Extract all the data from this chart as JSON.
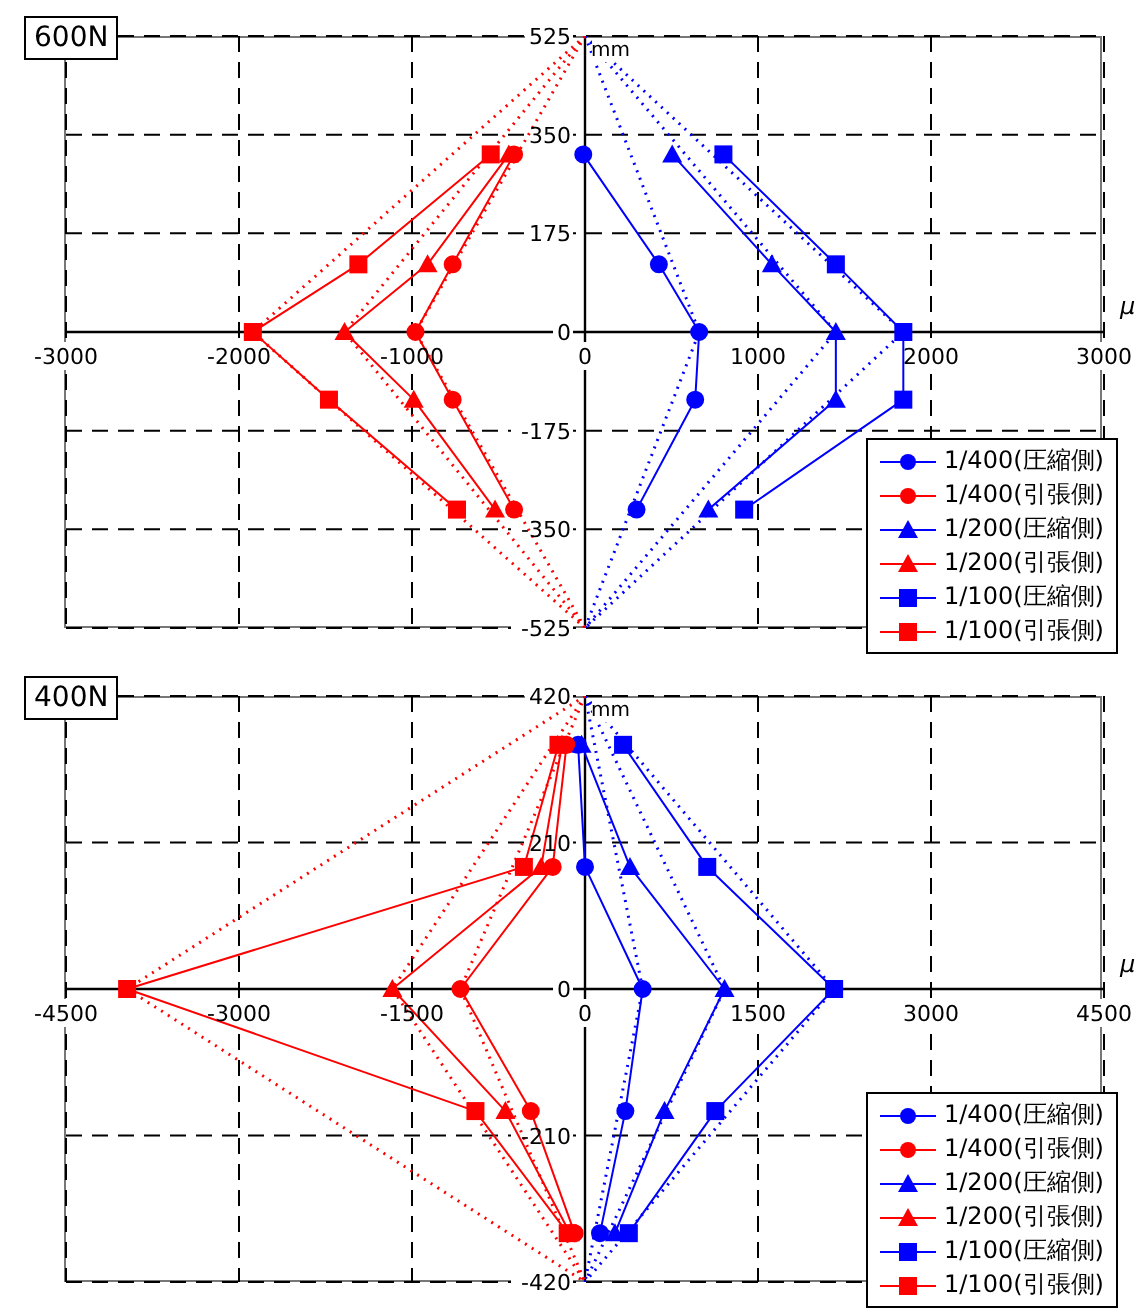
{
  "chart_data": [
    {
      "type": "line",
      "title": "600N",
      "xlabel": "μ",
      "ylabel": "mm",
      "xlim": [
        -3000,
        3000
      ],
      "xticks": [
        -3000,
        -2000,
        -1000,
        0,
        1000,
        2000,
        3000
      ],
      "ylim": [
        -525,
        525
      ],
      "yticks": [
        -525,
        -350,
        -175,
        0,
        175,
        350,
        525
      ],
      "grid": true,
      "legend": "bottom right",
      "series": [
        {
          "name": "1/400(圧縮側)",
          "color": "#0000ff",
          "marker": "circle",
          "line_style": "solid",
          "x": [
            -10,
            427,
            660,
            637,
            298
          ],
          "values": [
            315,
            120,
            0,
            -120,
            -315
          ]
        },
        {
          "name": "1/400(引張側)",
          "color": "#ff0000",
          "marker": "circle",
          "line_style": "solid",
          "x": [
            -410,
            -765,
            -980,
            -765,
            -410
          ],
          "values": [
            315,
            120,
            0,
            -120,
            -315
          ]
        },
        {
          "name": "1/200(圧縮側)",
          "color": "#0000ff",
          "marker": "triangle",
          "line_style": "solid",
          "x": [
            504,
            1080,
            1450,
            1450,
            713
          ],
          "values": [
            315,
            120,
            0,
            -120,
            -315
          ]
        },
        {
          "name": "1/200(引張側)",
          "color": "#ff0000",
          "marker": "triangle",
          "line_style": "solid",
          "x": [
            -440,
            -910,
            -1390,
            -990,
            -520
          ],
          "values": [
            315,
            120,
            0,
            -120,
            -315
          ]
        },
        {
          "name": "1/100(圧縮側)",
          "color": "#0000ff",
          "marker": "square",
          "line_style": "solid",
          "x": [
            800,
            1450,
            1840,
            1840,
            920
          ],
          "values": [
            315,
            120,
            0,
            -120,
            -315
          ]
        },
        {
          "name": "1/100(引張側)",
          "color": "#ff0000",
          "marker": "square",
          "line_style": "solid",
          "x": [
            -545,
            -1310,
            -1920,
            -1480,
            -740
          ],
          "values": [
            315,
            120,
            0,
            -120,
            -315
          ]
        },
        {
          "type": "line",
          "color": "#0000ff",
          "marker": "none",
          "line_style": "dotted",
          "x": [
            0,
            660,
            0
          ],
          "values": [
            525,
            0,
            -525
          ]
        },
        {
          "type": "line",
          "color": "#ff0000",
          "marker": "none",
          "line_style": "dotted",
          "x": [
            0,
            -980,
            0
          ],
          "values": [
            525,
            0,
            -525
          ]
        },
        {
          "type": "line",
          "color": "#0000ff",
          "marker": "none",
          "line_style": "dotted",
          "x": [
            0,
            1450,
            0
          ],
          "values": [
            525,
            0,
            -525
          ]
        },
        {
          "type": "line",
          "color": "#ff0000",
          "marker": "none",
          "line_style": "dotted",
          "x": [
            0,
            -1390,
            0
          ],
          "values": [
            525,
            0,
            -525
          ]
        },
        {
          "type": "line",
          "color": "#0000ff",
          "marker": "none",
          "line_style": "dotted",
          "x": [
            0,
            1840,
            0
          ],
          "values": [
            525,
            0,
            -525
          ]
        },
        {
          "type": "line",
          "color": "#ff0000",
          "marker": "none",
          "line_style": "dotted",
          "x": [
            0,
            -1920,
            0
          ],
          "values": [
            525,
            0,
            -525
          ]
        }
      ]
    },
    {
      "type": "line",
      "title": "400N",
      "xlabel": "μ",
      "ylabel": "mm",
      "xlim": [
        -4500,
        4500
      ],
      "xticks": [
        -4500,
        -3000,
        -1500,
        0,
        1500,
        3000,
        4500
      ],
      "ylim": [
        -420,
        420
      ],
      "yticks": [
        -420,
        -210,
        0,
        210,
        420
      ],
      "grid": true,
      "legend": "bottom right",
      "series": [
        {
          "name": "1/400(圧縮側)",
          "color": "#0000ff",
          "marker": "circle",
          "line_style": "solid",
          "x": [
            -60,
            0,
            500,
            350,
            130
          ],
          "values": [
            350,
            175,
            0,
            -175,
            -350
          ]
        },
        {
          "name": "1/400(引張側)",
          "color": "#ff0000",
          "marker": "circle",
          "line_style": "solid",
          "x": [
            -160,
            -280,
            -1080,
            -470,
            -90
          ],
          "values": [
            350,
            175,
            0,
            -175,
            -350
          ]
        },
        {
          "name": "1/200(圧縮側)",
          "color": "#0000ff",
          "marker": "triangle",
          "line_style": "solid",
          "x": [
            -30,
            390,
            1210,
            690,
            260
          ],
          "values": [
            350,
            175,
            0,
            -175,
            -350
          ]
        },
        {
          "name": "1/200(引張側)",
          "color": "#ff0000",
          "marker": "triangle",
          "line_style": "solid",
          "x": [
            -200,
            -380,
            -1670,
            -690,
            -130
          ],
          "values": [
            350,
            175,
            0,
            -175,
            -350
          ]
        },
        {
          "name": "1/100(圧縮側)",
          "color": "#0000ff",
          "marker": "square",
          "line_style": "solid",
          "x": [
            330,
            1060,
            2160,
            1130,
            380
          ],
          "values": [
            350,
            175,
            0,
            -175,
            -350
          ]
        },
        {
          "name": "1/100(引張側)",
          "color": "#ff0000",
          "marker": "square",
          "line_style": "solid",
          "x": [
            -230,
            -530,
            -3970,
            -950,
            -150
          ],
          "values": [
            350,
            175,
            0,
            -175,
            -350
          ]
        },
        {
          "type": "line",
          "color": "#0000ff",
          "marker": "none",
          "line_style": "dotted",
          "x": [
            0,
            500,
            0
          ],
          "values": [
            420,
            0,
            -420
          ]
        },
        {
          "type": "line",
          "color": "#ff0000",
          "marker": "none",
          "line_style": "dotted",
          "x": [
            0,
            -1080,
            0
          ],
          "values": [
            420,
            0,
            -420
          ]
        },
        {
          "type": "line",
          "color": "#0000ff",
          "marker": "none",
          "line_style": "dotted",
          "x": [
            0,
            1210,
            0
          ],
          "values": [
            420,
            0,
            -420
          ]
        },
        {
          "type": "line",
          "color": "#ff0000",
          "marker": "none",
          "line_style": "dotted",
          "x": [
            0,
            -1670,
            0
          ],
          "values": [
            420,
            0,
            -420
          ]
        },
        {
          "type": "line",
          "color": "#0000ff",
          "marker": "none",
          "line_style": "dotted",
          "x": [
            0,
            2160,
            0
          ],
          "values": [
            420,
            0,
            -420
          ]
        },
        {
          "type": "line",
          "color": "#ff0000",
          "marker": "none",
          "line_style": "dotted",
          "x": [
            0,
            -3970,
            0
          ],
          "values": [
            420,
            0,
            -420
          ]
        }
      ]
    }
  ]
}
